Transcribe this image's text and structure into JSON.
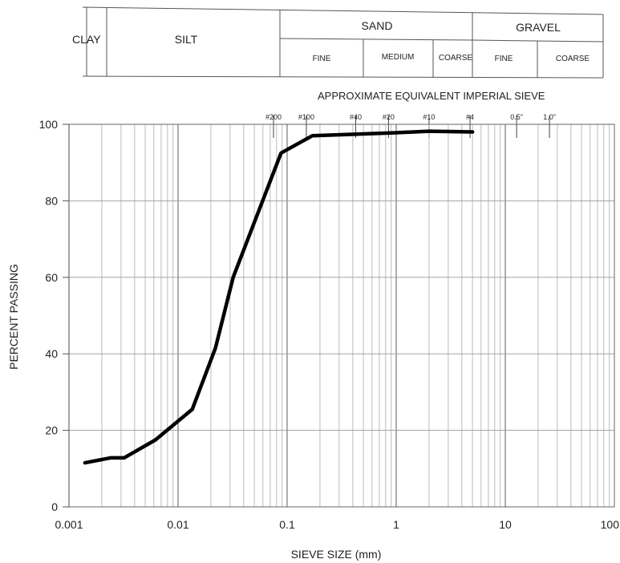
{
  "classification": {
    "clay": "CLAY",
    "silt": "SILT",
    "sand": {
      "label": "SAND",
      "fine": "FINE",
      "medium": "MEDIUM",
      "coarse": "COARSE"
    },
    "gravel": {
      "label": "GRAVEL",
      "fine": "FINE",
      "coarse": "COARSE"
    }
  },
  "chart_data": {
    "type": "line",
    "xscale": "log",
    "xlabel": "SIEVE SIZE (mm)",
    "ylabel": "PERCENT PASSING",
    "xlim": [
      0.001,
      100
    ],
    "ylim": [
      0,
      100
    ],
    "grid": true,
    "x_ticks": [
      {
        "value": 0.001,
        "label": "0.001"
      },
      {
        "value": 0.01,
        "label": "0.01"
      },
      {
        "value": 0.1,
        "label": "0.1"
      },
      {
        "value": 1,
        "label": "1"
      },
      {
        "value": 10,
        "label": "10"
      },
      {
        "value": 100,
        "label": "100"
      }
    ],
    "y_ticks": [
      {
        "value": 0,
        "label": "0"
      },
      {
        "value": 20,
        "label": "20"
      },
      {
        "value": 40,
        "label": "40"
      },
      {
        "value": 60,
        "label": "60"
      },
      {
        "value": 80,
        "label": "80"
      },
      {
        "value": 100,
        "label": "100"
      }
    ],
    "sieves": {
      "title": "APPROXIMATE EQUIVALENT IMPERIAL SIEVE",
      "marks": [
        {
          "label": "#200",
          "x": 0.075
        },
        {
          "label": "#100",
          "x": 0.15
        },
        {
          "label": "#40",
          "x": 0.425
        },
        {
          "label": "#20",
          "x": 0.85
        },
        {
          "label": "#10",
          "x": 2.0
        },
        {
          "label": "#4",
          "x": 4.75
        },
        {
          "label": "0.5\"",
          "x": 12.7
        },
        {
          "label": "1.0\"",
          "x": 25.4
        }
      ]
    },
    "series": [
      {
        "x": [
          0.0014,
          0.0024,
          0.0032,
          0.0062,
          0.0135,
          0.022,
          0.032,
          0.088,
          0.17,
          1.0,
          2.0,
          5.0
        ],
        "y": [
          11.5,
          12.8,
          12.8,
          17.5,
          25.5,
          41.5,
          60,
          92.5,
          97,
          97.8,
          98.2,
          98
        ]
      }
    ]
  }
}
